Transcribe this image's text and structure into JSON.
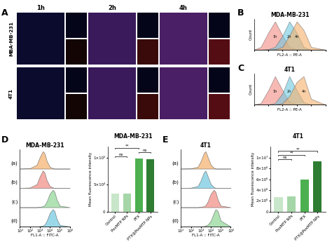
{
  "panel_labels": [
    "A",
    "B",
    "C",
    "D",
    "E"
  ],
  "microscopy": {
    "columns": [
      "1h",
      "2h",
      "4h"
    ],
    "rows": [
      "MBA-MB-231",
      "4T1"
    ]
  },
  "chart_data": [
    {
      "type": "density",
      "title": "MDA-MB-231",
      "x_label": "FL2-A :: PE-A",
      "y_label": "Count",
      "log": "x",
      "xlim": [
        10,
        1000000
      ],
      "ylim": [
        0,
        1.1
      ],
      "tick_labels": false,
      "x": [
        10,
        30,
        100,
        300,
        1000,
        3000,
        10000,
        30000,
        100000,
        1000000
      ],
      "series": [
        {
          "name": "1h",
          "color": "#f28b82",
          "values": [
            0,
            0.1,
            0.6,
            1.0,
            0.5,
            0.1,
            0.02,
            0,
            0,
            0
          ]
        },
        {
          "name": "2h",
          "color": "#6fc8e0",
          "values": [
            0,
            0,
            0.02,
            0.1,
            0.5,
            1.0,
            0.6,
            0.1,
            0,
            0
          ]
        },
        {
          "name": "4h",
          "color": "#f5b06b",
          "values": [
            0,
            0,
            0,
            0.02,
            0.1,
            0.5,
            1.0,
            0.7,
            0.1,
            0
          ]
        }
      ]
    },
    {
      "type": "density",
      "title": "4T1",
      "x_label": "FL2-A :: PE-A",
      "y_label": "Count",
      "log": "x",
      "xlim": [
        10,
        1000000
      ],
      "ylim": [
        0,
        1.1
      ],
      "tick_labels": false,
      "x": [
        10,
        30,
        100,
        300,
        1000,
        3000,
        10000,
        30000,
        100000,
        1000000
      ],
      "series": [
        {
          "name": "1h",
          "color": "#f28b82",
          "values": [
            0,
            0.05,
            0.5,
            1.0,
            0.5,
            0.1,
            0,
            0,
            0,
            0
          ]
        },
        {
          "name": "2h",
          "color": "#6fc8e0",
          "values": [
            0,
            0,
            0,
            0.05,
            0.4,
            1.0,
            0.5,
            0.08,
            0,
            0
          ]
        },
        {
          "name": "4h",
          "color": "#f5b06b",
          "values": [
            0,
            0,
            0,
            0,
            0.05,
            0.3,
            0.8,
            1.0,
            0.2,
            0
          ]
        }
      ]
    },
    {
      "type": "ridgeline",
      "title": "MDA-MB-231",
      "x_label": "FL1-A :: FITC-A",
      "log": "x",
      "xlim": [
        10,
        1000000
      ],
      "tick_labels": "x",
      "xticks": [
        {
          "value": 10,
          "label": "10¹"
        },
        {
          "value": 100,
          "label": "10²"
        },
        {
          "value": 1000,
          "label": "10³"
        },
        {
          "value": 10000,
          "label": "10⁴"
        },
        {
          "value": 100000,
          "label": "10⁵"
        },
        {
          "value": 1000000,
          "label": "10⁶"
        }
      ],
      "x": [
        10,
        100,
        500,
        1000,
        2000,
        3000,
        5000,
        10000,
        20000,
        30000,
        50000,
        100000,
        1000000
      ],
      "series": [
        {
          "name": "(a)",
          "color": "#f5b06b",
          "values": [
            0,
            0.02,
            0.2,
            0.6,
            0.9,
            0.8,
            0.4,
            0.1,
            0.02,
            0,
            0,
            0,
            0
          ]
        },
        {
          "name": "(b)",
          "color": "#f28b82",
          "values": [
            0,
            0.02,
            0.2,
            0.6,
            0.9,
            0.8,
            0.4,
            0.1,
            0.02,
            0,
            0,
            0,
            0
          ]
        },
        {
          "name": "(c)",
          "color": "#8fd694",
          "values": [
            0,
            0,
            0,
            0.02,
            0.05,
            0.1,
            0.3,
            0.7,
            0.9,
            0.8,
            0.4,
            0.08,
            0
          ]
        },
        {
          "name": "(d)",
          "color": "#6fc8e0",
          "values": [
            0,
            0,
            0,
            0.02,
            0.05,
            0.1,
            0.3,
            0.7,
            0.9,
            0.8,
            0.4,
            0.08,
            0
          ]
        }
      ]
    },
    {
      "type": "bar",
      "title": "MDA-MB-231",
      "y_label": "Mean fluorescence intensity",
      "categories": [
        "Control",
        "PoxMTP NPs",
        "PTX",
        "PTX@PoxMTP NPs"
      ],
      "values": [
        34000,
        33000,
        98000,
        97000
      ],
      "colors": [
        "#c8e6c9",
        "#a5d6a7",
        "#4caf50",
        "#2e7d32"
      ],
      "ylim": [
        0,
        120000
      ],
      "yticks": [
        0,
        {
          "value": 50000,
          "label": "5×10⁴"
        },
        {
          "value": 100000,
          "label": "1×10⁵"
        }
      ],
      "annotations": [
        {
          "from": "Control",
          "to": "PoxMTP NPs",
          "text": "ns"
        },
        {
          "from": "PTX",
          "to": "PTX@PoxMTP NPs",
          "text": "ns"
        },
        {
          "from": "Control",
          "to": "PTX",
          "text": "**"
        }
      ]
    },
    {
      "type": "ridgeline",
      "title": "4T1",
      "x_label": "FL1-A :: FITC-A",
      "log": "x",
      "xlim": [
        10,
        1000000
      ],
      "tick_labels": "x",
      "xticks": [
        {
          "value": 10,
          "label": "10¹"
        },
        {
          "value": 100,
          "label": "10²"
        },
        {
          "value": 1000,
          "label": "10³"
        },
        {
          "value": 10000,
          "label": "10⁴"
        },
        {
          "value": 100000,
          "label": "10⁵"
        },
        {
          "value": 1000000,
          "label": "10⁶"
        }
      ],
      "x": [
        10,
        100,
        500,
        1000,
        2000,
        3000,
        5000,
        10000,
        20000,
        30000,
        50000,
        100000,
        1000000
      ],
      "series": [
        {
          "name": "(a)",
          "color": "#f5b06b",
          "values": [
            0,
            0.01,
            0.1,
            0.4,
            0.8,
            0.9,
            0.6,
            0.2,
            0.05,
            0,
            0,
            0,
            0
          ]
        },
        {
          "name": "(b)",
          "color": "#6fc8e0",
          "values": [
            0,
            0.01,
            0.1,
            0.4,
            0.8,
            0.9,
            0.6,
            0.2,
            0.05,
            0,
            0,
            0,
            0
          ]
        },
        {
          "name": "(c)",
          "color": "#f28b82",
          "values": [
            0,
            0,
            0,
            0.02,
            0.05,
            0.1,
            0.3,
            0.7,
            0.9,
            0.8,
            0.4,
            0.08,
            0
          ]
        },
        {
          "name": "(d)",
          "color": "#8fd694",
          "values": [
            0,
            0,
            0,
            0,
            0.02,
            0.05,
            0.1,
            0.3,
            0.7,
            0.9,
            0.8,
            0.3,
            0
          ]
        }
      ]
    },
    {
      "type": "bar",
      "title": "4T1",
      "y_label": "Mean fluorescence intensity",
      "categories": [
        "Control",
        "PoxMTP NPs",
        "PTX",
        "PTX@PoxMTP NPs"
      ],
      "values": [
        2700000,
        2800000,
        6000000,
        9300000
      ],
      "colors": [
        "#c8e6c9",
        "#a5d6a7",
        "#4caf50",
        "#2e7d32"
      ],
      "ylim": [
        0,
        12000000
      ],
      "yticks": [
        0,
        {
          "value": 2000000,
          "label": "2×10⁶"
        },
        {
          "value": 4000000,
          "label": "4×10⁶"
        },
        {
          "value": 6000000,
          "label": "6×10⁶"
        },
        {
          "value": 8000000,
          "label": "8×10⁶"
        },
        {
          "value": 10000000,
          "label": "1×10⁷"
        }
      ],
      "annotations": [
        {
          "from": "Control",
          "to": "PoxMTP NPs",
          "text": "ns"
        },
        {
          "from": "Control",
          "to": "PTX",
          "text": "**"
        },
        {
          "from": "Control",
          "to": "PTX@PoxMTP NPs",
          "text": "**"
        }
      ]
    }
  ]
}
